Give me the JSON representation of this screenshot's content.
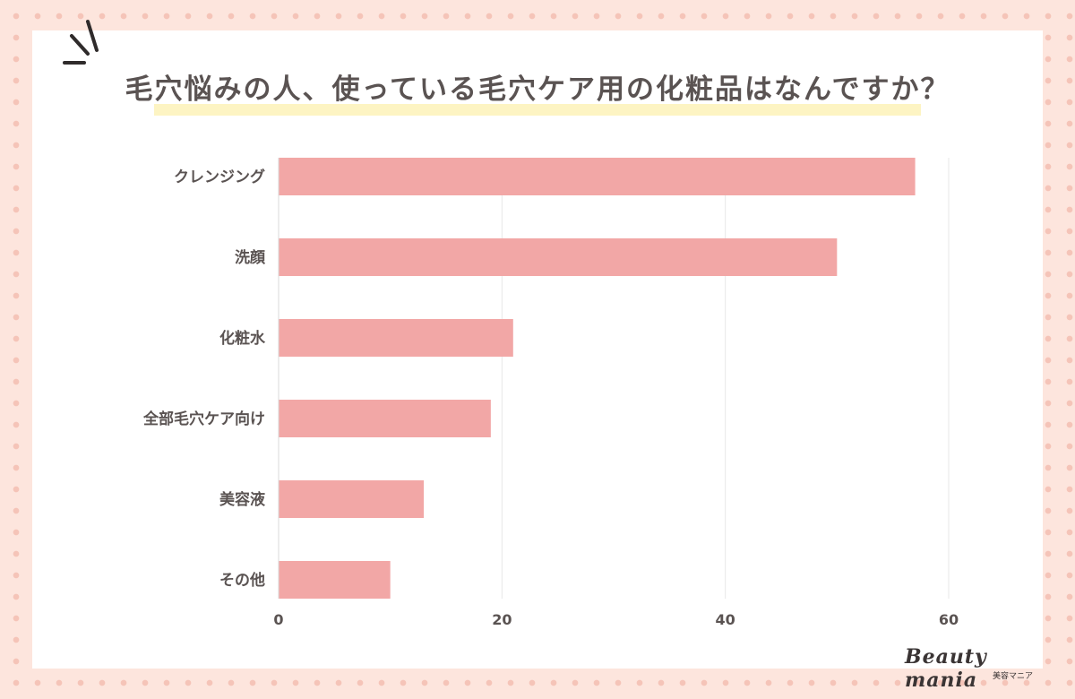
{
  "chart_data": {
    "type": "bar",
    "orientation": "horizontal",
    "title": "毛穴悩みの人、使っている毛穴ケア用の化粧品はなんですか？",
    "categories": [
      "クレンジング",
      "洗顔",
      "化粧水",
      "全部毛穴ケア向け",
      "美容液",
      "その他"
    ],
    "values": [
      57,
      50,
      21,
      19,
      13,
      10
    ],
    "xlim": [
      0,
      60
    ],
    "xticks": [
      0,
      20,
      40,
      60
    ],
    "xlabel": "",
    "ylabel": "",
    "grid": true,
    "bar_color": "#f2a7a6",
    "grid_color": "#e7e7e7"
  },
  "logo": {
    "main": "Beauty mania",
    "sub": "美容マニア"
  },
  "colors": {
    "background": "#fde5dd",
    "dot": "#f5c4b8",
    "card": "#ffffff",
    "title_text": "#5a5352",
    "title_highlight": "#fdf4c3",
    "label_text": "#5a5352"
  }
}
